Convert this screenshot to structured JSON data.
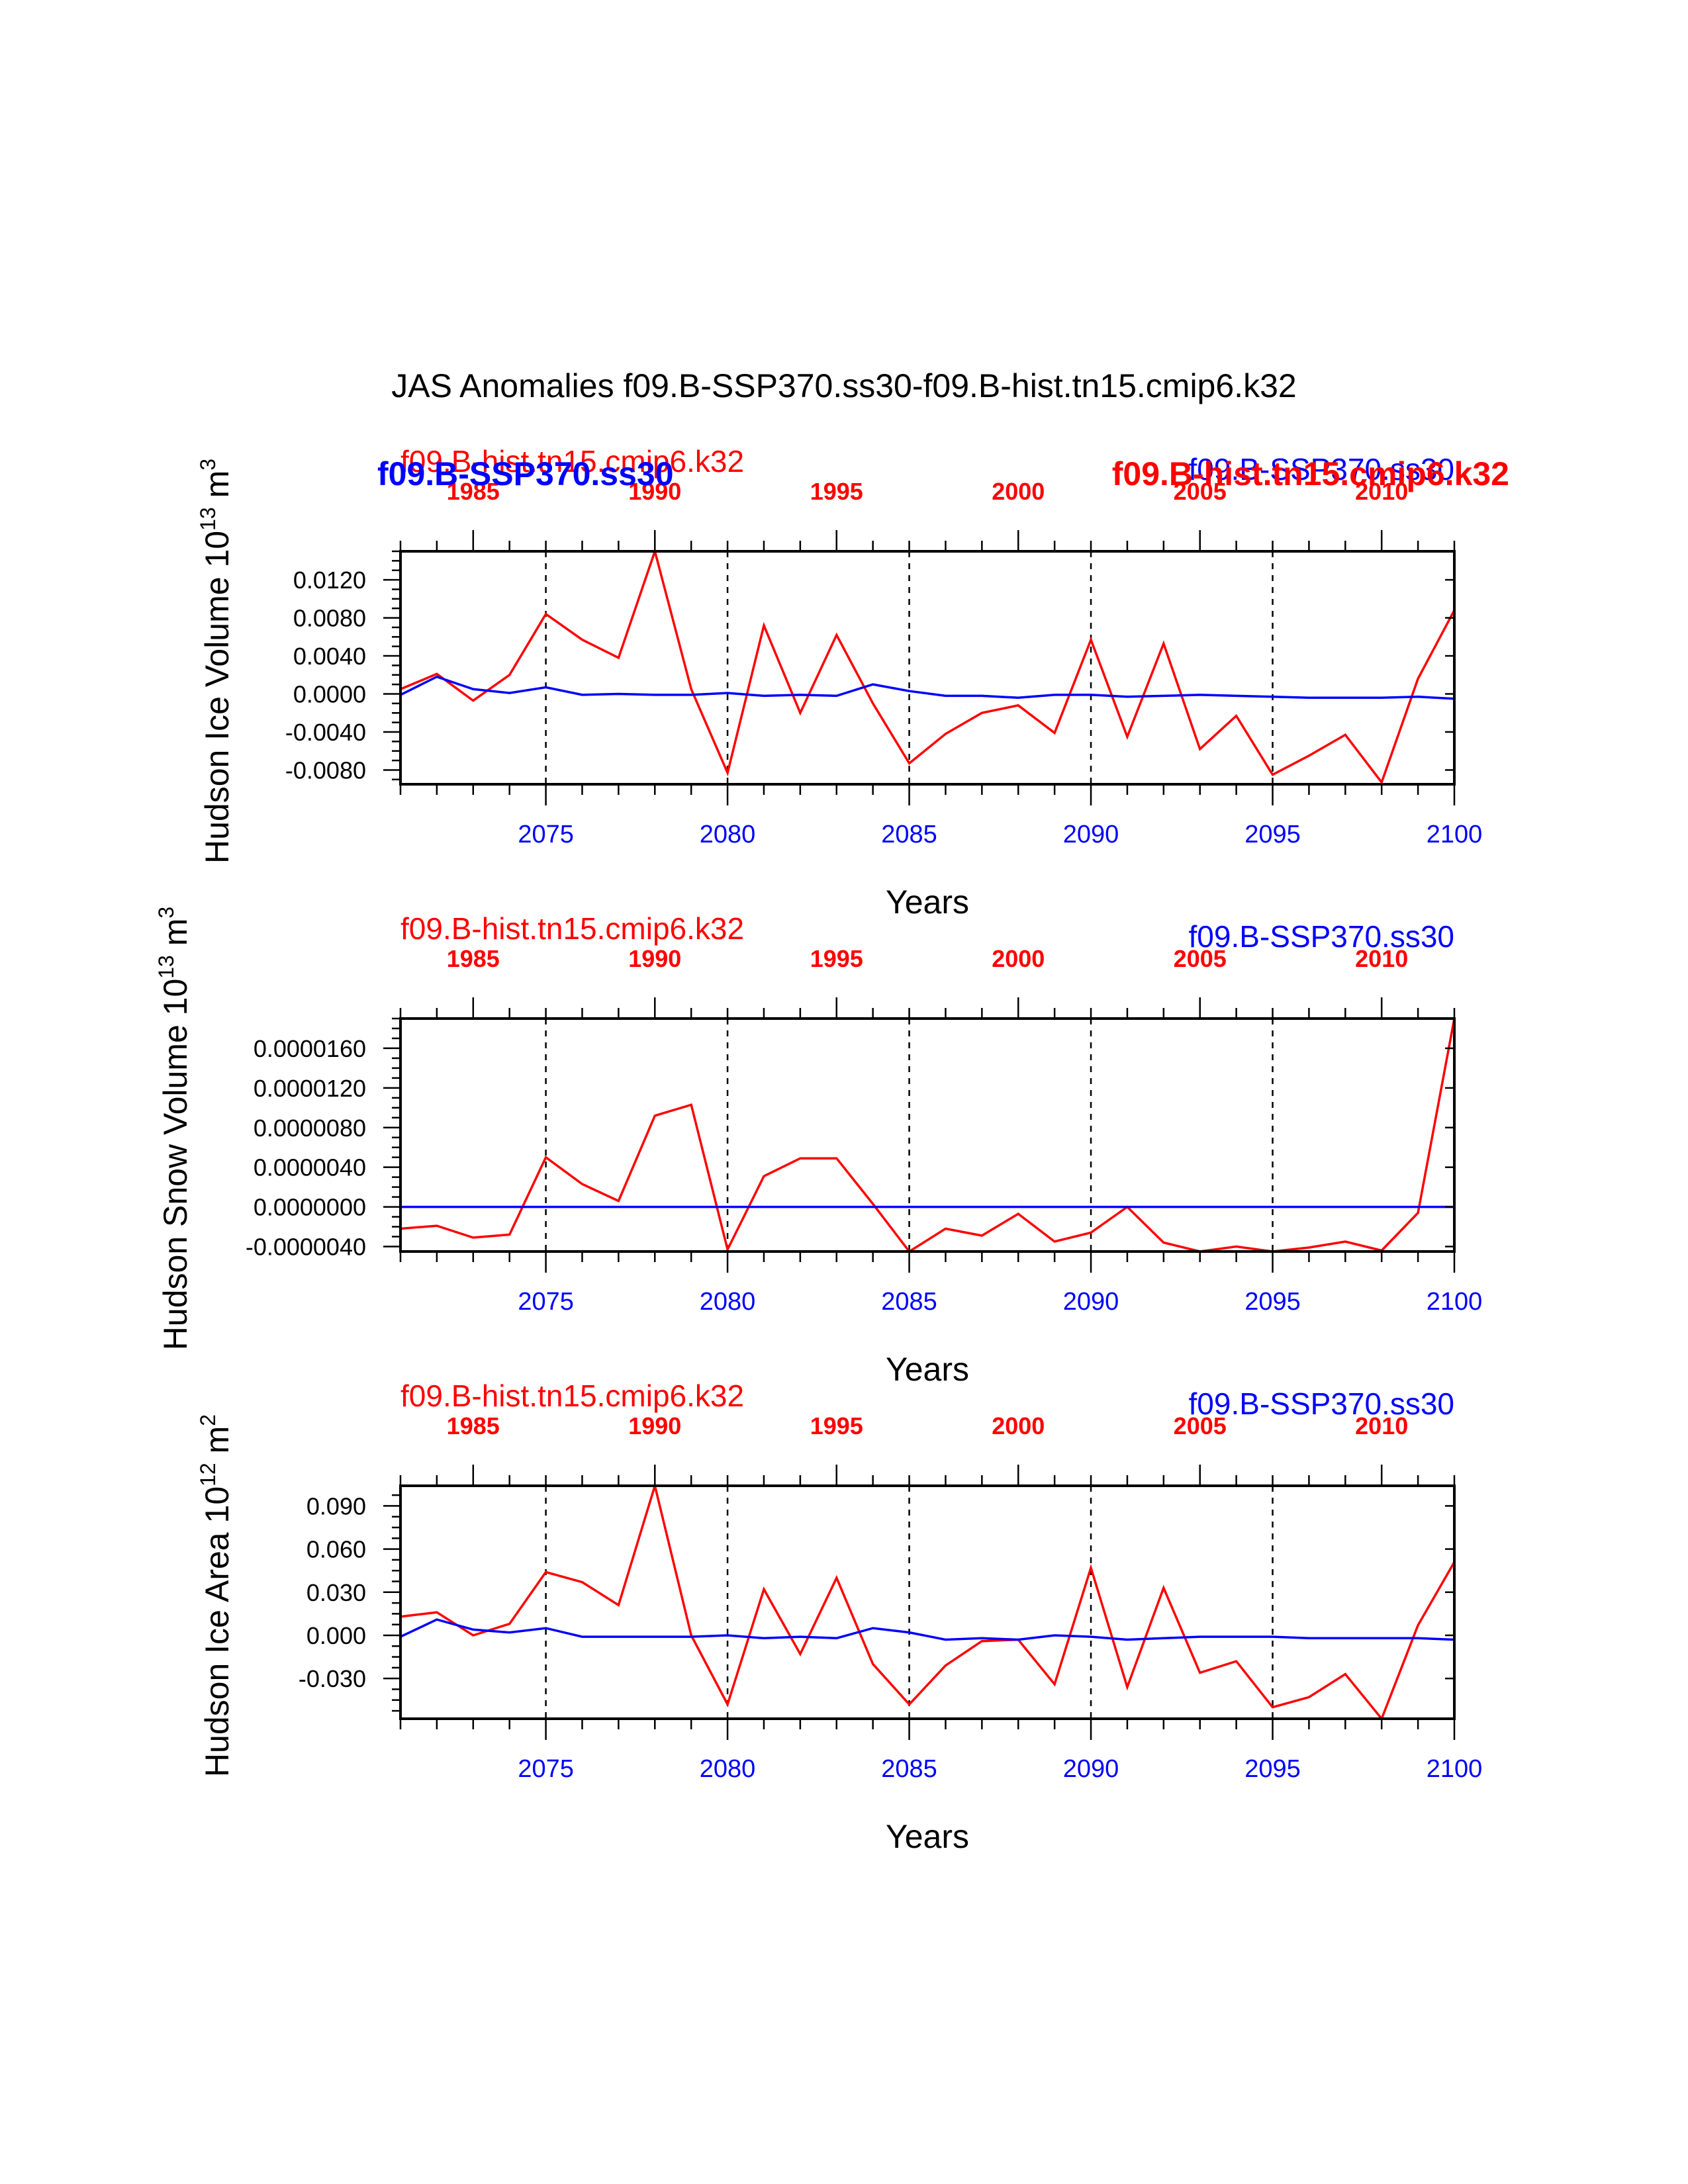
{
  "title": "JAS Anomalies f09.B-SSP370.ss30-f09.B-hist.tn15.cmip6.k32",
  "colors": {
    "hist": "#ff0000",
    "ssp": "#0000ff",
    "axis": "#000000"
  },
  "chart_data": [
    {
      "type": "line",
      "ylabel": "Hudson Ice Volume 10",
      "ylabel_exp": "13",
      "ylabel_unit": " m",
      "ylabel_unit_exp": "3",
      "xlabel": "Years",
      "top_left_label": "f09.B-hist.tn15.cmip6.k32",
      "top_right_label": "f09.B-SSP370.ss30",
      "top_left_overlay": "f09.B-SSP370.ss30",
      "top_right_overlay": "f09.B-hist.tn15.cmip6.k32",
      "xlim_bottom": [
        2071,
        2100
      ],
      "xlim_top": [
        1983,
        2012
      ],
      "x_ticks_bottom": [
        "2075",
        "2080",
        "2085",
        "2090",
        "2095",
        "2100"
      ],
      "x_ticks_top": [
        "1985",
        "1990",
        "1995",
        "2000",
        "2005",
        "2010"
      ],
      "ylim": [
        -0.0095,
        0.015
      ],
      "y_ticks": [
        "0.0120",
        "0.0080",
        "0.0040",
        "0.0000",
        "-0.0040",
        "-0.0080"
      ],
      "series": [
        {
          "name": "f09.B-hist.tn15.cmip6.k32",
          "color": "#ff0000",
          "x": [
            2071,
            2072,
            2073,
            2074,
            2075,
            2076,
            2077,
            2078,
            2079,
            2080,
            2081,
            2082,
            2083,
            2084,
            2085,
            2086,
            2087,
            2088,
            2089,
            2090,
            2091,
            2092,
            2093,
            2094,
            2095,
            2096,
            2097,
            2098,
            2099,
            2100
          ],
          "values": [
            0.0005,
            0.0021,
            -0.0007,
            0.002,
            0.0084,
            0.0057,
            0.0038,
            0.015,
            0.0005,
            -0.0083,
            0.0072,
            -0.002,
            0.0062,
            -0.001,
            -0.0073,
            -0.0042,
            -0.002,
            -0.0012,
            -0.0041,
            0.0057,
            -0.0045,
            0.0053,
            -0.0058,
            -0.0023,
            -0.0085,
            -0.0065,
            -0.0043,
            -0.0093,
            0.0016,
            0.0088
          ]
        },
        {
          "name": "f09.B-SSP370.ss30",
          "color": "#0000ff",
          "x": [
            2071,
            2072,
            2073,
            2074,
            2075,
            2076,
            2077,
            2078,
            2079,
            2080,
            2081,
            2082,
            2083,
            2084,
            2085,
            2086,
            2087,
            2088,
            2089,
            2090,
            2091,
            2092,
            2093,
            2094,
            2095,
            2096,
            2097,
            2098,
            2099,
            2100
          ],
          "values": [
            -0.0001,
            0.0018,
            0.0005,
            0.0001,
            0.0007,
            -0.0001,
            0.0,
            -0.0001,
            -0.0001,
            0.0001,
            -0.0002,
            -0.0001,
            -0.0002,
            0.001,
            0.0003,
            -0.0002,
            -0.0002,
            -0.0004,
            -0.0001,
            -0.0001,
            -0.0003,
            -0.0002,
            -0.0001,
            -0.0002,
            -0.0003,
            -0.0004,
            -0.0004,
            -0.0004,
            -0.0003,
            -0.0005
          ]
        }
      ]
    },
    {
      "type": "line",
      "ylabel": "Hudson Snow Volume 10",
      "ylabel_exp": "13",
      "ylabel_unit": " m",
      "ylabel_unit_exp": "3",
      "xlabel": "Years",
      "top_left_label": "f09.B-hist.tn15.cmip6.k32",
      "top_right_label": "f09.B-SSP370.ss30",
      "xlim_bottom": [
        2071,
        2100
      ],
      "xlim_top": [
        1983,
        2012
      ],
      "x_ticks_bottom": [
        "2075",
        "2080",
        "2085",
        "2090",
        "2095",
        "2100"
      ],
      "x_ticks_top": [
        "1985",
        "1990",
        "1995",
        "2000",
        "2005",
        "2010"
      ],
      "ylim": [
        -4.5e-06,
        1.9e-05
      ],
      "y_ticks": [
        "0.0000160",
        "0.0000120",
        "0.0000080",
        "0.0000040",
        "0.0000000",
        "-0.0000040"
      ],
      "series": [
        {
          "name": "f09.B-hist.tn15.cmip6.k32",
          "color": "#ff0000",
          "x": [
            2071,
            2072,
            2073,
            2074,
            2075,
            2076,
            2077,
            2078,
            2079,
            2080,
            2081,
            2082,
            2083,
            2084,
            2085,
            2086,
            2087,
            2088,
            2089,
            2090,
            2091,
            2092,
            2093,
            2094,
            2095,
            2096,
            2097,
            2098,
            2099,
            2100
          ],
          "values": [
            -2.2e-06,
            -1.9e-06,
            -3.1e-06,
            -2.8e-06,
            5e-06,
            2.3e-06,
            6e-07,
            9.2e-06,
            1.03e-05,
            -4.3e-06,
            3.1e-06,
            4.9e-06,
            4.9e-06,
            3e-07,
            -4.5e-06,
            -2.2e-06,
            -2.9e-06,
            -7e-07,
            -3.5e-06,
            -2.6e-06,
            0.0,
            -3.6e-06,
            -4.6e-06,
            -4e-06,
            -4.6e-06,
            -4.1e-06,
            -3.5e-06,
            -4.4e-06,
            -6e-07,
            1.9e-05
          ]
        },
        {
          "name": "f09.B-SSP370.ss30",
          "color": "#0000ff",
          "x": [
            2071,
            2100
          ],
          "values": [
            0.0,
            0.0
          ]
        }
      ]
    },
    {
      "type": "line",
      "ylabel": "Hudson Ice Area 10",
      "ylabel_exp": "12",
      "ylabel_unit": " m",
      "ylabel_unit_exp": "2",
      "xlabel": "Years",
      "top_left_label": "f09.B-hist.tn15.cmip6.k32",
      "top_right_label": "f09.B-SSP370.ss30",
      "xlim_bottom": [
        2071,
        2100
      ],
      "xlim_top": [
        1983,
        2012
      ],
      "x_ticks_bottom": [
        "2075",
        "2080",
        "2085",
        "2090",
        "2095",
        "2100"
      ],
      "x_ticks_top": [
        "1985",
        "1990",
        "1995",
        "2000",
        "2005",
        "2010"
      ],
      "ylim": [
        -0.058,
        0.104
      ],
      "y_ticks": [
        "0.090",
        "0.060",
        "0.030",
        "0.000",
        "-0.030"
      ],
      "series": [
        {
          "name": "f09.B-hist.tn15.cmip6.k32",
          "color": "#ff0000",
          "x": [
            2071,
            2072,
            2073,
            2074,
            2075,
            2076,
            2077,
            2078,
            2079,
            2080,
            2081,
            2082,
            2083,
            2084,
            2085,
            2086,
            2087,
            2088,
            2089,
            2090,
            2091,
            2092,
            2093,
            2094,
            2095,
            2096,
            2097,
            2098,
            2099,
            2100
          ],
          "values": [
            0.013,
            0.016,
            0.0,
            0.008,
            0.044,
            0.037,
            0.021,
            0.104,
            0.0,
            -0.048,
            0.032,
            -0.013,
            0.04,
            -0.02,
            -0.048,
            -0.021,
            -0.004,
            -0.003,
            -0.034,
            0.047,
            -0.036,
            0.033,
            -0.026,
            -0.018,
            -0.05,
            -0.043,
            -0.027,
            -0.058,
            0.007,
            0.051
          ]
        },
        {
          "name": "f09.B-SSP370.ss30",
          "color": "#0000ff",
          "x": [
            2071,
            2072,
            2073,
            2074,
            2075,
            2076,
            2077,
            2078,
            2079,
            2080,
            2081,
            2082,
            2083,
            2084,
            2085,
            2086,
            2087,
            2088,
            2089,
            2090,
            2091,
            2092,
            2093,
            2094,
            2095,
            2096,
            2097,
            2098,
            2099,
            2100
          ],
          "values": [
            -0.001,
            0.011,
            0.004,
            0.002,
            0.005,
            -0.001,
            -0.001,
            -0.001,
            -0.001,
            0.0,
            -0.002,
            -0.001,
            -0.002,
            0.005,
            0.002,
            -0.003,
            -0.002,
            -0.003,
            0.0,
            -0.001,
            -0.003,
            -0.002,
            -0.001,
            -0.001,
            -0.001,
            -0.002,
            -0.002,
            -0.002,
            -0.002,
            -0.003
          ]
        }
      ]
    }
  ]
}
